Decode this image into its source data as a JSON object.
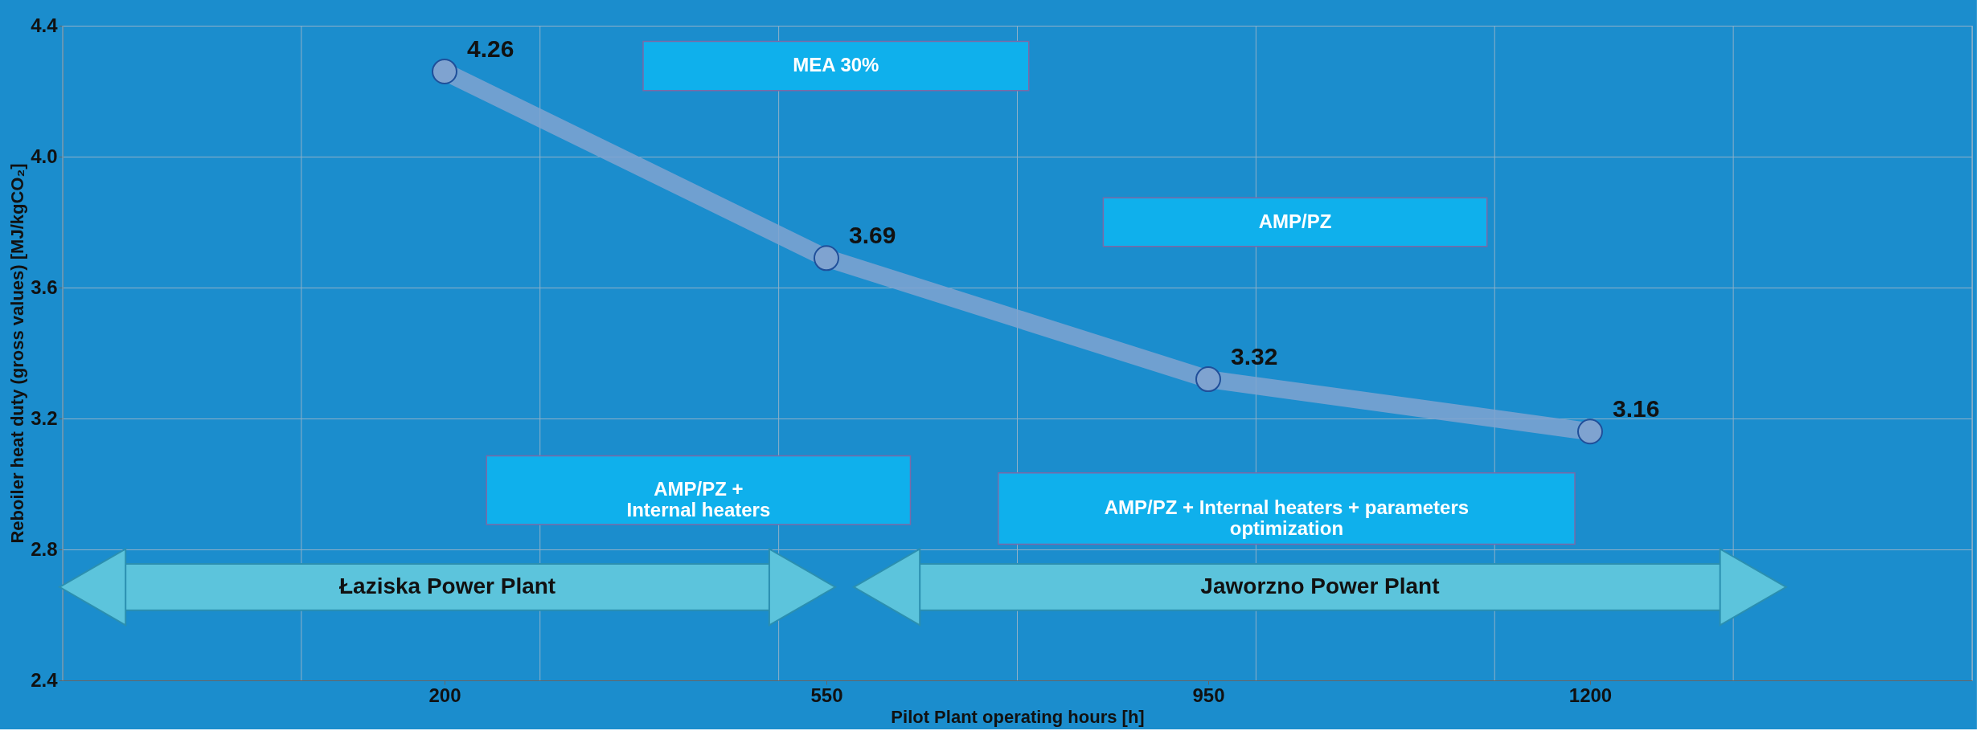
{
  "chart_data": {
    "type": "line",
    "xlabel": "Pilot Plant operating hours  [h]",
    "ylabel": "Reboiler heat duty (gross values) [MJ/kgCO₂]",
    "categories": [
      "200",
      "550",
      "950",
      "1200"
    ],
    "series": [
      {
        "color": "#7fa3d0",
        "values": [
          4.26,
          3.69,
          3.32,
          3.16
        ]
      }
    ],
    "ylim": [
      2.4,
      4.4
    ],
    "yticks": [
      2.4,
      2.8,
      3.2,
      3.6,
      {
        "value": 4.0,
        "label": "4.0"
      },
      4.4
    ],
    "grid": true,
    "marker": "circle",
    "data_labels": true,
    "annotations": [
      "MEA 30%",
      "AMP/PZ",
      "AMP/PZ +\nInternal heaters",
      "AMP/PZ + Internal heaters + parameters\noptimization",
      "Łaziska Power Plant",
      "Jaworzno Power Plant"
    ]
  }
}
